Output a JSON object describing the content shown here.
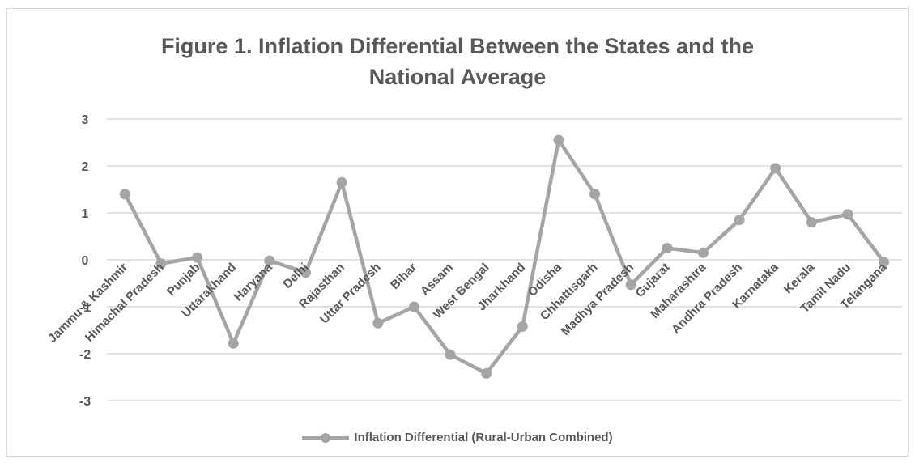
{
  "chart_data": {
    "type": "line",
    "title_lines": [
      "Figure 1. Inflation Differential Between the States and the",
      "National Average"
    ],
    "categories": [
      "Jammu & Kashmir",
      "Himachal Pradesh",
      "Punjab",
      "Uttarakhand",
      "Haryana",
      "Delhi",
      "Rajasthan",
      "Uttar Pradesh",
      "Bihar",
      "Assam",
      "West Bengal",
      "Jharkhand",
      "Odisha",
      "Chhattisgarh",
      "Madhya Pradesh",
      "Gujarat",
      "Maharashtra",
      "Andhra Pradesh",
      "Karnataka",
      "Kerala",
      "Tamil Nadu",
      "Telangana"
    ],
    "series": [
      {
        "name": "Inflation Differential (Rural-Urban Combined)",
        "color": "#a5a5a5",
        "values": [
          1.4,
          -0.08,
          0.05,
          -1.78,
          -0.02,
          -0.27,
          1.65,
          -1.35,
          -1.0,
          -2.02,
          -2.42,
          -1.42,
          2.55,
          1.4,
          -0.53,
          0.25,
          0.15,
          0.85,
          1.95,
          0.8,
          0.97,
          -0.05
        ]
      }
    ],
    "yticks": [
      "3",
      "2",
      "1",
      "0",
      "-1",
      "-2",
      "-3"
    ],
    "ylim": [
      -3,
      3
    ],
    "grid": true,
    "legend": "bottom"
  }
}
